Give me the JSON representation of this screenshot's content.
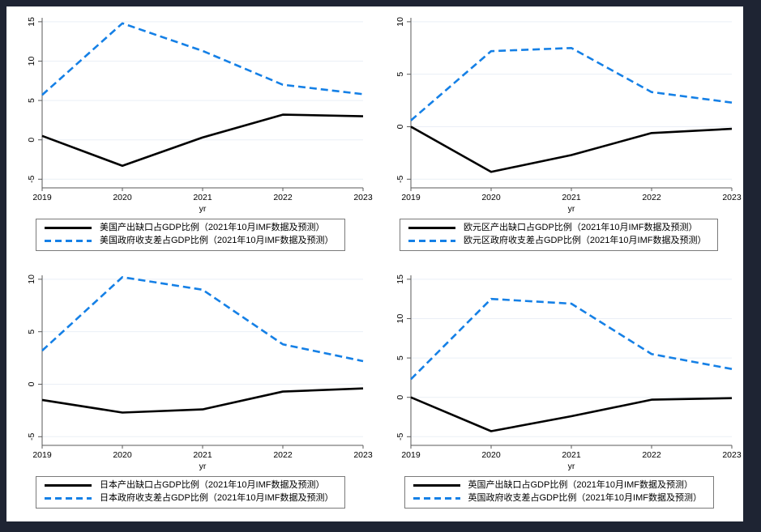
{
  "frame": {
    "background_color": "#1e2433",
    "panel_background": "#ffffff"
  },
  "colors": {
    "output_gap_line": "#000000",
    "balance_line": "#1580e6",
    "gridline": "#eaeff6",
    "axis": "#5a5a5a",
    "tick_text": "#000000"
  },
  "chart_data": [
    {
      "id": "us",
      "type": "line",
      "title": "",
      "xlabel": "yr",
      "ylabel": "",
      "x": [
        2019,
        2020,
        2021,
        2022,
        2023
      ],
      "ylim": [
        -5,
        15
      ],
      "yticks": [
        -5,
        0,
        5,
        10,
        15
      ],
      "grid": true,
      "legend_position": "bottom",
      "series": [
        {
          "name": "美国产出缺口占GDP比例（2021年10月IMF数据及预测）",
          "line_style": "solid",
          "color": "#000000",
          "values": [
            0.5,
            -3.3,
            0.3,
            3.2,
            3.0
          ]
        },
        {
          "name": "美国政府收支差占GDP比例（2021年10月IMF数据及预测）",
          "line_style": "dashed",
          "color": "#1580e6",
          "values": [
            5.7,
            14.8,
            11.3,
            7.0,
            5.8
          ]
        }
      ]
    },
    {
      "id": "eurozone",
      "type": "line",
      "title": "",
      "xlabel": "yr",
      "ylabel": "",
      "x": [
        2019,
        2020,
        2021,
        2022,
        2023
      ],
      "ylim": [
        -5,
        10
      ],
      "yticks": [
        -5,
        0,
        5,
        10
      ],
      "grid": true,
      "legend_position": "bottom",
      "series": [
        {
          "name": "欧元区产出缺口占GDP比例（2021年10月IMF数据及预测）",
          "line_style": "solid",
          "color": "#000000",
          "values": [
            0.0,
            -4.3,
            -2.7,
            -0.6,
            -0.2
          ]
        },
        {
          "name": "欧元区政府收支差占GDP比例（2021年10月IMF数据及预测）",
          "line_style": "dashed",
          "color": "#1580e6",
          "values": [
            0.6,
            7.2,
            7.5,
            3.3,
            2.3
          ]
        }
      ]
    },
    {
      "id": "japan",
      "type": "line",
      "title": "",
      "xlabel": "yr",
      "ylabel": "",
      "x": [
        2019,
        2020,
        2021,
        2022,
        2023
      ],
      "ylim": [
        -5,
        10
      ],
      "yticks": [
        -5,
        0,
        5,
        10
      ],
      "grid": true,
      "legend_position": "bottom",
      "series": [
        {
          "name": "日本产出缺口占GDP比例（2021年10月IMF数据及预测）",
          "line_style": "solid",
          "color": "#000000",
          "values": [
            -1.5,
            -2.7,
            -2.4,
            -0.7,
            -0.4
          ]
        },
        {
          "name": "日本政府收支差占GDP比例（2021年10月IMF数据及预测）",
          "line_style": "dashed",
          "color": "#1580e6",
          "values": [
            3.2,
            10.2,
            9.0,
            3.8,
            2.2
          ]
        }
      ]
    },
    {
      "id": "uk",
      "type": "line",
      "title": "",
      "xlabel": "yr",
      "ylabel": "",
      "x": [
        2019,
        2020,
        2021,
        2022,
        2023
      ],
      "ylim": [
        -5,
        15
      ],
      "yticks": [
        -5,
        0,
        5,
        10,
        15
      ],
      "grid": true,
      "legend_position": "bottom",
      "series": [
        {
          "name": "英国产出缺口占GDP比例（2021年10月IMF数据及预测）",
          "line_style": "solid",
          "color": "#000000",
          "values": [
            0.0,
            -4.3,
            -2.4,
            -0.3,
            -0.1
          ]
        },
        {
          "name": "英国政府收支差占GDP比例（2021年10月IMF数据及预测）",
          "line_style": "dashed",
          "color": "#1580e6",
          "values": [
            2.3,
            12.5,
            11.9,
            5.5,
            3.6
          ]
        }
      ]
    }
  ]
}
